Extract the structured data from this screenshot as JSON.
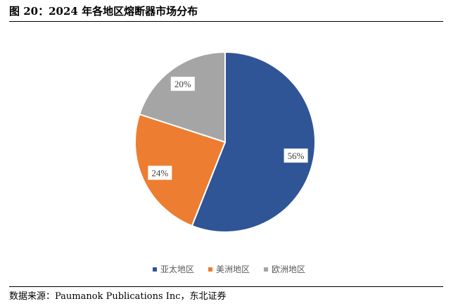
{
  "figure": {
    "title": "图 20：2024 年各地区熔断器市场分布",
    "source": "数据来源：Paumanok Publications Inc，东北证券"
  },
  "chart_data": {
    "type": "pie",
    "title": "",
    "categories": [
      "亚太地区",
      "美洲地区",
      "欧洲地区"
    ],
    "values": [
      56,
      24,
      20
    ],
    "data_labels": [
      "56%",
      "24%",
      "20%"
    ],
    "colors": [
      "#2F5597",
      "#ED7D31",
      "#A5A5A5"
    ],
    "start_angle": "12 o'clock",
    "direction": "clockwise",
    "legend_position": "bottom"
  }
}
